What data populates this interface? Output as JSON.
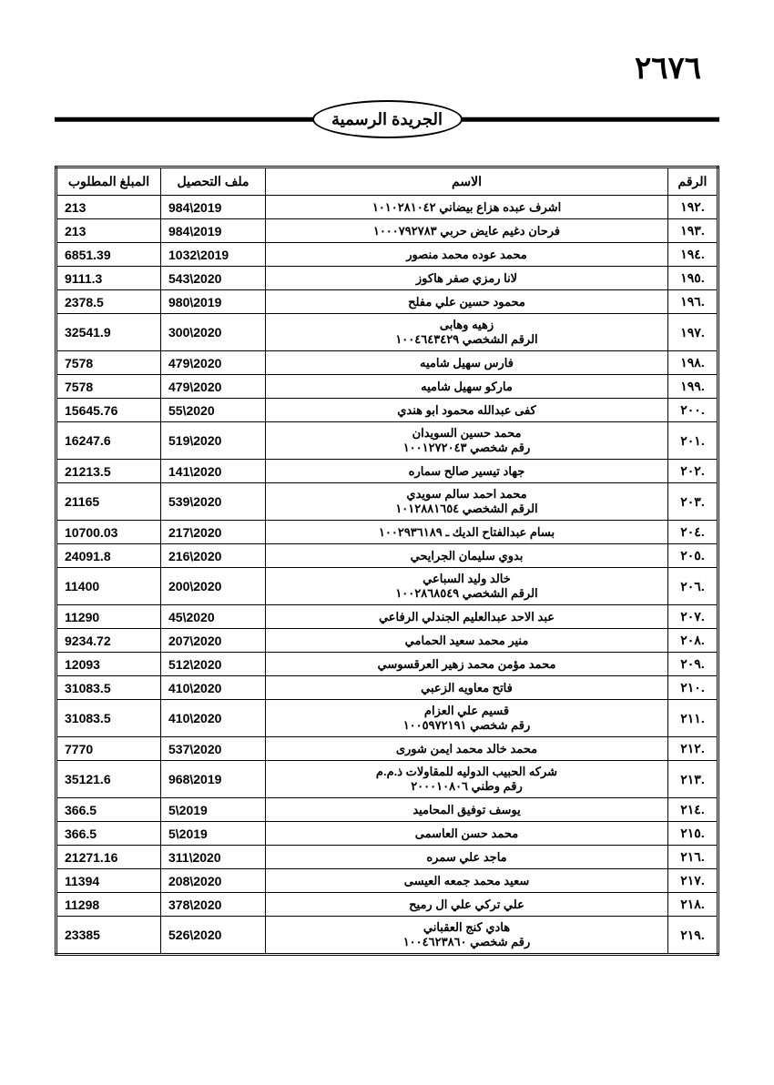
{
  "page_number": "٢٦٧٦",
  "header_title": "الجريدة الرسمية",
  "columns": {
    "amount": "المبلغ المطلوب",
    "file": "ملف التحصيل",
    "name": "الاسم",
    "num": "الرقم"
  },
  "rows": [
    {
      "num": ".١٩٢",
      "name": "اشرف عبده هزاع بيضاني ١٠١٠٢٨١٠٤٢",
      "file": "984\\2019",
      "amount": "213"
    },
    {
      "num": ".١٩٣",
      "name": "فرحان دغيم عايض حربي ١٠٠٠٧٩٢٧٨٣",
      "file": "984\\2019",
      "amount": "213"
    },
    {
      "num": ".١٩٤",
      "name": "محمد عوده محمد منصور",
      "file": "1032\\2019",
      "amount": "6851.39"
    },
    {
      "num": ".١٩٥",
      "name": "لانا رمزي صفر هاكوز",
      "file": "543\\2020",
      "amount": "9111.3"
    },
    {
      "num": ".١٩٦",
      "name": "محمود حسين علي مفلح",
      "file": "980\\2019",
      "amount": "2378.5"
    },
    {
      "num": ".١٩٧",
      "name": "زهيه وهابى",
      "name2": "الرقم الشخصي ١٠٠٤٦٤٣٤٢٩",
      "file": "300\\2020",
      "amount": "32541.9"
    },
    {
      "num": ".١٩٨",
      "name": "فارس سهيل شاميه",
      "file": "479\\2020",
      "amount": "7578"
    },
    {
      "num": ".١٩٩",
      "name": "ماركو سهيل شاميه",
      "file": "479\\2020",
      "amount": "7578"
    },
    {
      "num": ".٢٠٠",
      "name": "كفى عبدالله محمود ابو هندي",
      "file": "55\\2020",
      "amount": "15645.76"
    },
    {
      "num": ".٢٠١",
      "name": "محمد حسين السويدان",
      "name2": "رقم شخصي ١٠٠١٢٧٢٠٤٣",
      "file": "519\\2020",
      "amount": "16247.6"
    },
    {
      "num": ".٢٠٢",
      "name": "جهاد تيسير صالح سماره",
      "file": "141\\2020",
      "amount": "21213.5"
    },
    {
      "num": ".٢٠٣",
      "name": "محمد احمد سالم سويدي",
      "name2": "الرقم الشخصي ١٠١٢٨٨١٦٥٤",
      "file": "539\\2020",
      "amount": "21165"
    },
    {
      "num": ".٢٠٤",
      "name": "بسام عبدالفتاح الديك ـ ١٠٠٢٩٣٦١٨٩",
      "file": "217\\2020",
      "amount": "10700.03"
    },
    {
      "num": ".٢٠٥",
      "name": "بدوي سليمان الجرايحي",
      "file": "216\\2020",
      "amount": "24091.8"
    },
    {
      "num": ".٢٠٦",
      "name": "خالد وليد السباعي",
      "name2": "الرقم الشخصي ١٠٠٢٨٦٨٥٤٩",
      "file": "200\\2020",
      "amount": "11400"
    },
    {
      "num": ".٢٠٧",
      "name": "عبد الاحد عبدالعليم الجندلي الرفاعي",
      "file": "45\\2020",
      "amount": "11290"
    },
    {
      "num": ".٢٠٨",
      "name": "منير محمد سعيد الحمامي",
      "file": "207\\2020",
      "amount": "9234.72"
    },
    {
      "num": ".٢٠٩",
      "name": "محمد مؤمن محمد زهير العرقسوسي",
      "file": "512\\2020",
      "amount": "12093"
    },
    {
      "num": ".٢١٠",
      "name": "فاتح معاويه الزعبي",
      "file": "410\\2020",
      "amount": "31083.5"
    },
    {
      "num": ".٢١١",
      "name": "قسيم علي العزام",
      "name2": "رقم شخصي ١٠٠٥٩٧٢١٩١",
      "file": "410\\2020",
      "amount": "31083.5"
    },
    {
      "num": ".٢١٢",
      "name": "محمد خالد محمد ايمن شورى",
      "file": "537\\2020",
      "amount": "7770"
    },
    {
      "num": ".٢١٣",
      "name": "شركه الحبيب الدوليه للمقاولات ذ.م.م",
      "name2": "رقم وطني ٢٠٠٠١٠٨٠٦",
      "file": "968\\2019",
      "amount": "35121.6"
    },
    {
      "num": ".٢١٤",
      "name": "يوسف توفيق المحاميد",
      "file": "5\\2019",
      "amount": "366.5"
    },
    {
      "num": ".٢١٥",
      "name": "محمد حسن العاسمى",
      "file": "5\\2019",
      "amount": "366.5"
    },
    {
      "num": ".٢١٦",
      "name": "ماجد علي سمره",
      "file": "311\\2020",
      "amount": "21271.16"
    },
    {
      "num": ".٢١٧",
      "name": "سعيد محمد جمعه العيسى",
      "file": "208\\2020",
      "amount": "11394"
    },
    {
      "num": ".٢١٨",
      "name": "علي تركي علي ال رميح",
      "file": "378\\2020",
      "amount": "11298"
    },
    {
      "num": ".٢١٩",
      "name": "هادي كنج العقباني",
      "name2": "رقم شخصي ١٠٠٤٦٢٣٨٦٠",
      "file": "526\\2020",
      "amount": "23385"
    }
  ]
}
